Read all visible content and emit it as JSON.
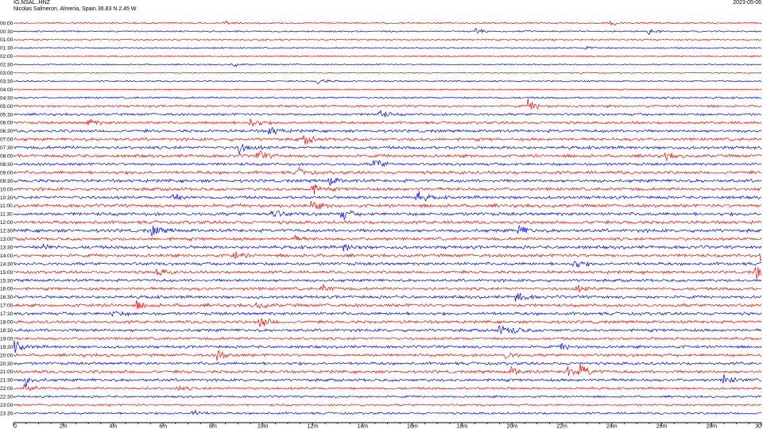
{
  "header": {
    "station": "IG.NSAL..HNZ",
    "location": "Nicolas Salmeron, Almeria, Spain  36.83 N 2.45 W",
    "date": "2023-05-06"
  },
  "colors": {
    "odd_trace": "#ff0000",
    "even_trace": "#0000ff",
    "axis": "#000000"
  },
  "chart_data": {
    "type": "line",
    "title": "IG.NSAL..HNZ",
    "subtitle": "Nicolas Salmeron, Almeria, Spain  36.83 N 2.45 W",
    "xlabel": "",
    "ylabel": "",
    "xlim": [
      0,
      30
    ],
    "x_ticks": [
      {
        "value": 0,
        "label": "0"
      },
      {
        "value": 2,
        "label": "2m"
      },
      {
        "value": 4,
        "label": "4m"
      },
      {
        "value": 6,
        "label": "6m"
      },
      {
        "value": 8,
        "label": "8m"
      },
      {
        "value": 10,
        "label": "10m"
      },
      {
        "value": 12,
        "label": "12m"
      },
      {
        "value": 14,
        "label": "14m"
      },
      {
        "value": 16,
        "label": "16m"
      },
      {
        "value": 18,
        "label": "18m"
      },
      {
        "value": 20,
        "label": "20m"
      },
      {
        "value": 22,
        "label": "22m"
      },
      {
        "value": 24,
        "label": "24m"
      },
      {
        "value": 26,
        "label": "26m"
      },
      {
        "value": 28,
        "label": "28m"
      },
      {
        "value": 30,
        "label": "30"
      }
    ],
    "rows": [
      {
        "time": "00:00",
        "level": 0.15,
        "events": [
          {
            "t": 8.5,
            "a": 0.35
          },
          {
            "t": 24.0,
            "a": 0.35
          }
        ]
      },
      {
        "time": "00:30",
        "level": 0.15,
        "events": [
          {
            "t": 18.6,
            "a": 0.5
          },
          {
            "t": 25.5,
            "a": 0.45
          }
        ]
      },
      {
        "time": "01:00",
        "level": 0.15,
        "events": []
      },
      {
        "time": "01:30",
        "level": 0.12,
        "events": [
          {
            "t": 23.0,
            "a": 0.4
          }
        ]
      },
      {
        "time": "02:00",
        "level": 0.1,
        "events": []
      },
      {
        "time": "02:30",
        "level": 0.12,
        "events": [
          {
            "t": 8.8,
            "a": 0.3
          }
        ]
      },
      {
        "time": "03:00",
        "level": 0.08,
        "events": []
      },
      {
        "time": "03:30",
        "level": 0.12,
        "events": [
          {
            "t": 12.2,
            "a": 0.5
          }
        ]
      },
      {
        "time": "04:00",
        "level": 0.1,
        "events": []
      },
      {
        "time": "04:30",
        "level": 0.25,
        "events": [
          {
            "t": 26.0,
            "a": 0.3
          }
        ]
      },
      {
        "time": "05:00",
        "level": 0.3,
        "events": [
          {
            "t": 20.7,
            "a": 0.9
          }
        ]
      },
      {
        "time": "05:30",
        "level": 0.35,
        "events": [
          {
            "t": 14.6,
            "a": 1.0
          }
        ]
      },
      {
        "time": "06:00",
        "level": 0.4,
        "events": [
          {
            "t": 3.0,
            "a": 0.6
          },
          {
            "t": 9.5,
            "a": 0.9
          }
        ]
      },
      {
        "time": "06:30",
        "level": 0.45,
        "events": [
          {
            "t": 10.3,
            "a": 0.8
          }
        ]
      },
      {
        "time": "07:00",
        "level": 0.45,
        "events": [
          {
            "t": 11.7,
            "a": 0.7
          }
        ]
      },
      {
        "time": "07:30",
        "level": 0.5,
        "events": [
          {
            "t": 9.1,
            "a": 0.9
          }
        ]
      },
      {
        "time": "08:00",
        "level": 0.5,
        "events": [
          {
            "t": 9.8,
            "a": 0.8
          },
          {
            "t": 26.2,
            "a": 0.5
          }
        ]
      },
      {
        "time": "08:30",
        "level": 0.45,
        "events": [
          {
            "t": 14.5,
            "a": 0.9
          }
        ]
      },
      {
        "time": "09:00",
        "level": 0.5,
        "events": [
          {
            "t": 11.4,
            "a": 0.6
          }
        ]
      },
      {
        "time": "09:30",
        "level": 0.5,
        "events": [
          {
            "t": 12.7,
            "a": 0.7
          }
        ]
      },
      {
        "time": "10:00",
        "level": 0.5,
        "events": [
          {
            "t": 12.0,
            "a": 0.8
          }
        ]
      },
      {
        "time": "10:30",
        "level": 0.5,
        "events": [
          {
            "t": 6.4,
            "a": 0.6
          },
          {
            "t": 16.2,
            "a": 0.9
          }
        ]
      },
      {
        "time": "11:00",
        "level": 0.55,
        "events": [
          {
            "t": 12.0,
            "a": 0.7
          }
        ]
      },
      {
        "time": "11:30",
        "level": 0.55,
        "events": [
          {
            "t": 10.4,
            "a": 0.8
          },
          {
            "t": 13.2,
            "a": 0.8
          }
        ]
      },
      {
        "time": "12:00",
        "level": 0.5,
        "events": []
      },
      {
        "time": "12:30",
        "level": 0.55,
        "events": [
          {
            "t": 5.6,
            "a": 0.8
          },
          {
            "t": 20.3,
            "a": 0.8
          }
        ]
      },
      {
        "time": "13:00",
        "level": 0.5,
        "events": [
          {
            "t": 11.2,
            "a": 0.5
          }
        ]
      },
      {
        "time": "13:30",
        "level": 0.55,
        "events": [
          {
            "t": 1.2,
            "a": 0.6
          },
          {
            "t": 13.3,
            "a": 0.6
          }
        ]
      },
      {
        "time": "14:00",
        "level": 0.5,
        "events": [
          {
            "t": 8.8,
            "a": 0.7
          },
          {
            "t": 30.0,
            "a": 0.6
          }
        ]
      },
      {
        "time": "14:30",
        "level": 0.5,
        "events": [
          {
            "t": 22.5,
            "a": 0.7
          }
        ]
      },
      {
        "time": "15:00",
        "level": 0.45,
        "events": [
          {
            "t": 5.8,
            "a": 0.5
          },
          {
            "t": 29.8,
            "a": 1.1
          }
        ]
      },
      {
        "time": "15:30",
        "level": 0.45,
        "events": []
      },
      {
        "time": "16:00",
        "level": 0.45,
        "events": [
          {
            "t": 12.4,
            "a": 0.5
          },
          {
            "t": 22.6,
            "a": 0.5
          }
        ]
      },
      {
        "time": "16:30",
        "level": 0.5,
        "events": [
          {
            "t": 20.2,
            "a": 0.9
          }
        ]
      },
      {
        "time": "17:00",
        "level": 0.5,
        "events": [
          {
            "t": 5.0,
            "a": 0.6
          },
          {
            "t": 9.8,
            "a": 0.5
          }
        ]
      },
      {
        "time": "17:30",
        "level": 0.5,
        "events": [
          {
            "t": 4.0,
            "a": 0.5
          }
        ]
      },
      {
        "time": "18:00",
        "level": 0.45,
        "events": [
          {
            "t": 9.9,
            "a": 1.0
          }
        ]
      },
      {
        "time": "18:30",
        "level": 0.45,
        "events": [
          {
            "t": 19.5,
            "a": 0.7
          },
          {
            "t": 20.0,
            "a": 0.6
          }
        ]
      },
      {
        "time": "19:00",
        "level": 0.4,
        "events": []
      },
      {
        "time": "19:30",
        "level": 0.45,
        "events": [
          {
            "t": 0.1,
            "a": 0.8
          },
          {
            "t": 22.0,
            "a": 0.5
          }
        ]
      },
      {
        "time": "20:00",
        "level": 0.45,
        "events": [
          {
            "t": 8.2,
            "a": 0.8
          },
          {
            "t": 19.8,
            "a": 0.5
          }
        ]
      },
      {
        "time": "20:30",
        "level": 0.45,
        "events": []
      },
      {
        "time": "21:00",
        "level": 0.45,
        "events": [
          {
            "t": 20.0,
            "a": 0.7
          },
          {
            "t": 22.2,
            "a": 1.2
          },
          {
            "t": 22.8,
            "a": 1.1
          }
        ]
      },
      {
        "time": "21:30",
        "level": 0.45,
        "events": [
          {
            "t": 0.5,
            "a": 0.8
          },
          {
            "t": 28.5,
            "a": 0.8
          }
        ]
      },
      {
        "time": "22:00",
        "level": 0.35,
        "events": [
          {
            "t": 0.5,
            "a": 0.6
          },
          {
            "t": 6.5,
            "a": 0.4
          }
        ]
      },
      {
        "time": "22:30",
        "level": 0.3,
        "events": []
      },
      {
        "time": "23:00",
        "level": 0.25,
        "events": []
      },
      {
        "time": "23:30",
        "level": 0.3,
        "events": [
          {
            "t": 7.2,
            "a": 0.5
          }
        ]
      }
    ]
  }
}
